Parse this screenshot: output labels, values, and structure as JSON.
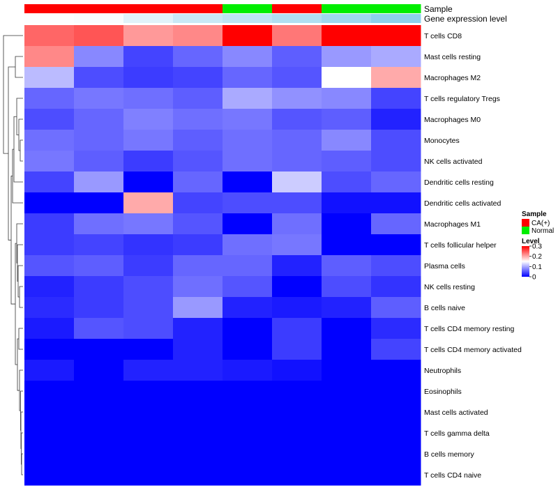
{
  "chart_data": {
    "type": "heatmap",
    "title": "",
    "annotation_tracks": [
      {
        "name": "Sample",
        "values": [
          "CA(+)",
          "CA(+)",
          "CA(+)",
          "CA(+)",
          "Normal",
          "CA(+)",
          "Normal",
          "Normal"
        ]
      },
      {
        "name": "Gene expression level",
        "values": [
          0.02,
          0.05,
          0.25,
          0.45,
          0.55,
          0.65,
          0.8,
          0.95
        ]
      }
    ],
    "rows": [
      "T cells CD8",
      "Mast cells resting",
      "Macrophages M2",
      "T cells regulatory  Tregs",
      "Macrophages M0",
      "Monocytes",
      "NK cells activated",
      "Dendritic cells resting",
      "Dendritic cells activated",
      "Macrophages M1",
      "T cells follicular helper",
      "Plasma cells",
      "NK cells resting",
      "B cells naive",
      "T cells CD4 memory resting",
      "T cells CD4 memory activated",
      "Neutrophils",
      "Eosinophils",
      "Mast cells activated",
      "T cells gamma delta",
      "B cells memory",
      "T cells CD4 naive"
    ],
    "values": [
      [
        0.24,
        0.25,
        0.21,
        0.22,
        0.3,
        0.23,
        0.3,
        0.3
      ],
      [
        0.22,
        0.08,
        0.04,
        0.06,
        0.08,
        0.055,
        0.09,
        0.1
      ],
      [
        0.11,
        0.045,
        0.035,
        0.04,
        0.06,
        0.05,
        0.15,
        0.2
      ],
      [
        0.06,
        0.07,
        0.065,
        0.055,
        0.1,
        0.085,
        0.08,
        0.04
      ],
      [
        0.045,
        0.06,
        0.075,
        0.065,
        0.07,
        0.05,
        0.055,
        0.02
      ],
      [
        0.065,
        0.06,
        0.07,
        0.055,
        0.065,
        0.06,
        0.08,
        0.045
      ],
      [
        0.07,
        0.055,
        0.035,
        0.05,
        0.065,
        0.06,
        0.055,
        0.045
      ],
      [
        0.04,
        0.09,
        0.0,
        0.06,
        0.0,
        0.12,
        0.045,
        0.06
      ],
      [
        0.0,
        0.0,
        0.2,
        0.04,
        0.045,
        0.045,
        0.01,
        0.01
      ],
      [
        0.035,
        0.065,
        0.07,
        0.05,
        0.0,
        0.065,
        0.0,
        0.06
      ],
      [
        0.035,
        0.04,
        0.03,
        0.035,
        0.065,
        0.07,
        0.0,
        0.0
      ],
      [
        0.05,
        0.055,
        0.035,
        0.06,
        0.06,
        0.02,
        0.055,
        0.045
      ],
      [
        0.02,
        0.035,
        0.045,
        0.065,
        0.05,
        0.0,
        0.045,
        0.03
      ],
      [
        0.025,
        0.035,
        0.045,
        0.09,
        0.02,
        0.015,
        0.02,
        0.055
      ],
      [
        0.015,
        0.05,
        0.045,
        0.02,
        0.0,
        0.035,
        0.0,
        0.025
      ],
      [
        0.0,
        0.0,
        0.0,
        0.02,
        0.0,
        0.035,
        0.0,
        0.04
      ],
      [
        0.015,
        0.0,
        0.02,
        0.02,
        0.015,
        0.01,
        0.0,
        0.0
      ],
      [
        0.0,
        0.0,
        0.0,
        0.0,
        0.0,
        0.0,
        0.0,
        0.0
      ],
      [
        0.0,
        0.0,
        0.0,
        0.0,
        0.0,
        0.0,
        0.0,
        0.0
      ],
      [
        0.0,
        0.0,
        0.0,
        0.0,
        0.0,
        0.0,
        0.0,
        0.0
      ],
      [
        0.0,
        0.0,
        0.0,
        0.0,
        0.0,
        0.0,
        0.0,
        0.0
      ],
      [
        0.0,
        0.0,
        0.0,
        0.0,
        0.0,
        0.0,
        0.0,
        0.0
      ]
    ],
    "color_scale": {
      "low": "#0000ff",
      "mid": "#ffffff",
      "high": "#ff0000",
      "min": 0,
      "max": 0.3
    },
    "row_dendrogram": true,
    "legend": {
      "placement": "right",
      "sample_title": "Sample",
      "sample_entries": [
        {
          "label": "CA(+)",
          "color": "#ff0000"
        },
        {
          "label": "Normal",
          "color": "#00ee00"
        }
      ],
      "level_title": "Level",
      "level_ticks": [
        {
          "value": 0.3,
          "label": "0.3"
        },
        {
          "value": 0.2,
          "label": "0.2"
        },
        {
          "value": 0.1,
          "label": "0.1"
        },
        {
          "value": 0,
          "label": "0"
        }
      ]
    },
    "expression_colors": {
      "low": "#ffffff",
      "high": "#87ceeb"
    }
  }
}
